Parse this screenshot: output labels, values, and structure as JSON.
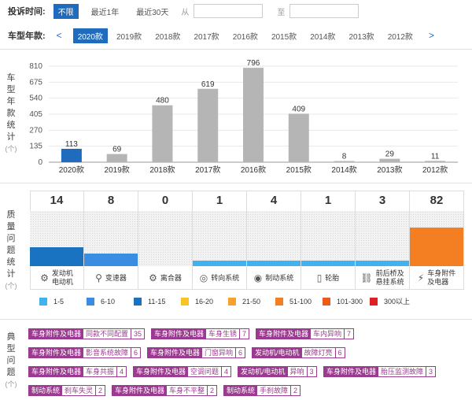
{
  "filters": {
    "time_label": "投诉时间:",
    "time_options": [
      "不限",
      "最近1年",
      "最近30天"
    ],
    "from_label": "从",
    "to_label": "至",
    "year_label": "车型年款:",
    "years": [
      "2020款",
      "2019款",
      "2018款",
      "2017款",
      "2016款",
      "2015款",
      "2014款",
      "2013款",
      "2012款"
    ],
    "prev": "<",
    "next": ">"
  },
  "year_section": {
    "label": [
      "车",
      "型",
      "年",
      "款",
      "统",
      "计"
    ],
    "unit": "(个)"
  },
  "chart_data": {
    "type": "bar",
    "categories": [
      "2020款",
      "2019款",
      "2018款",
      "2017款",
      "2016款",
      "2015款",
      "2014款",
      "2013款",
      "2012款"
    ],
    "values": [
      113,
      69,
      480,
      619,
      796,
      409,
      8,
      29,
      11
    ],
    "yticks": [
      0,
      135,
      270,
      405,
      540,
      675,
      810
    ],
    "ylim": [
      0,
      810
    ],
    "highlight_index": 0,
    "colors": {
      "highlight": "#1f6bbd",
      "normal": "#b5b5b5"
    }
  },
  "quality": {
    "label": [
      "质",
      "量",
      "问",
      "题",
      "统",
      "计"
    ],
    "unit": "(个)",
    "categories": [
      {
        "name": [
          "发动机",
          "电动机"
        ],
        "count": "14",
        "fill": 0.35,
        "color": "#1a73c0",
        "icon": "⚙"
      },
      {
        "name": [
          "变速器"
        ],
        "count": "8",
        "fill": 0.23,
        "color": "#3a8de0",
        "icon": "⚲"
      },
      {
        "name": [
          "离合器"
        ],
        "count": "0",
        "fill": 0,
        "color": "#3a8de0",
        "icon": "⚙"
      },
      {
        "name": [
          "转向系统"
        ],
        "count": "1",
        "fill": 0.1,
        "color": "#40b2f0",
        "icon": "◎"
      },
      {
        "name": [
          "制动系统"
        ],
        "count": "4",
        "fill": 0.1,
        "color": "#40b2f0",
        "icon": "◉"
      },
      {
        "name": [
          "轮胎"
        ],
        "count": "1",
        "fill": 0.1,
        "color": "#40b2f0",
        "icon": "▯"
      },
      {
        "name": [
          "前后桥及",
          "悬挂系统"
        ],
        "count": "3",
        "fill": 0.1,
        "color": "#40b2f0",
        "icon": "⛓"
      },
      {
        "name": [
          "车身附件",
          "及电器"
        ],
        "count": "82",
        "fill": 0.7,
        "color": "#f47e22",
        "icon": "⚡"
      }
    ]
  },
  "legend": [
    {
      "label": "1-5",
      "color": "#40b2f0"
    },
    {
      "label": "6-10",
      "color": "#3a8de0"
    },
    {
      "label": "11-15",
      "color": "#1a73c0"
    },
    {
      "label": "16-20",
      "color": "#f8c323"
    },
    {
      "label": "21-50",
      "color": "#f8a030"
    },
    {
      "label": "51-100",
      "color": "#f47e22"
    },
    {
      "label": "101-300",
      "color": "#ee5a1c"
    },
    {
      "label": "300以上",
      "color": "#e02020"
    }
  ],
  "typical": {
    "label": [
      "典",
      "型",
      "问",
      "题"
    ],
    "unit": "(个)",
    "tags": [
      {
        "cat": "车身附件及电器",
        "name": "同款不同配置",
        "count": "35"
      },
      {
        "cat": "车身附件及电器",
        "name": "车身生锈",
        "count": "7"
      },
      {
        "cat": "车身附件及电器",
        "name": "车内异响",
        "count": "7"
      },
      {
        "cat": "车身附件及电器",
        "name": "影音系统故障",
        "count": "6"
      },
      {
        "cat": "车身附件及电器",
        "name": "门窗异响",
        "count": "6"
      },
      {
        "cat": "发动机/电动机",
        "name": "故障灯亮",
        "count": "6"
      },
      {
        "cat": "车身附件及电器",
        "name": "车身共振",
        "count": "4"
      },
      {
        "cat": "车身附件及电器",
        "name": "空调问题",
        "count": "4"
      },
      {
        "cat": "发动机/电动机",
        "name": "异响",
        "count": "3"
      },
      {
        "cat": "车身附件及电器",
        "name": "胎压监测故障",
        "count": "3"
      },
      {
        "cat": "制动系统",
        "name": "刹车失灵",
        "count": "2"
      },
      {
        "cat": "车身附件及电器",
        "name": "车身不平整",
        "count": "2"
      },
      {
        "cat": "制动系统",
        "name": "手刹故障",
        "count": "2"
      }
    ]
  }
}
